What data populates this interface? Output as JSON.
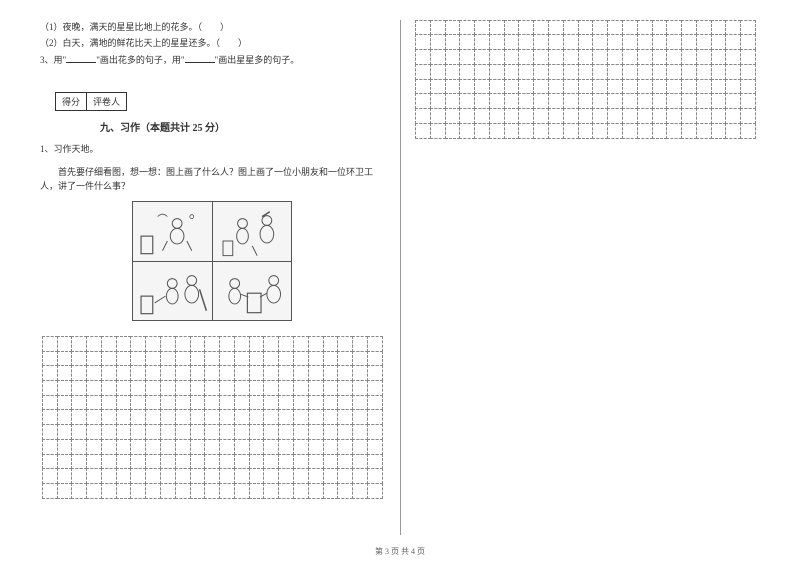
{
  "left_column": {
    "questions": {
      "q1": "（1）夜晚，满天的星星比地上的花多。（　　）",
      "q2": "（2）白天，满地的鲜花比天上的星星还多。（　　）",
      "q3_prefix": "3、用\"",
      "q3_mid1": "\"画出花多的句子，用\"",
      "q3_mid2": "\"画出星星多的句子。"
    },
    "score_box": {
      "score_label": "得分",
      "grader_label": "评卷人"
    },
    "section": {
      "title": "九、习作（本题共计 25 分）"
    },
    "exercise": {
      "number": "1、习作天地。",
      "instruction": "首先要仔细看图，想一想：图上画了什么人？图上画了一位小朋友和一位环卫工人，讲了一件什么事？"
    }
  },
  "footer": {
    "text": "第 3 页 共 4 页"
  },
  "styling": {
    "grid_border_color": "#888888",
    "text_color": "#333333",
    "font_size_body": 9,
    "font_size_title": 10,
    "left_grid": {
      "cols": 23,
      "rows": 11
    },
    "right_grid": {
      "cols": 23,
      "rows": 8
    },
    "comic_bg": "#f5f5f5"
  }
}
